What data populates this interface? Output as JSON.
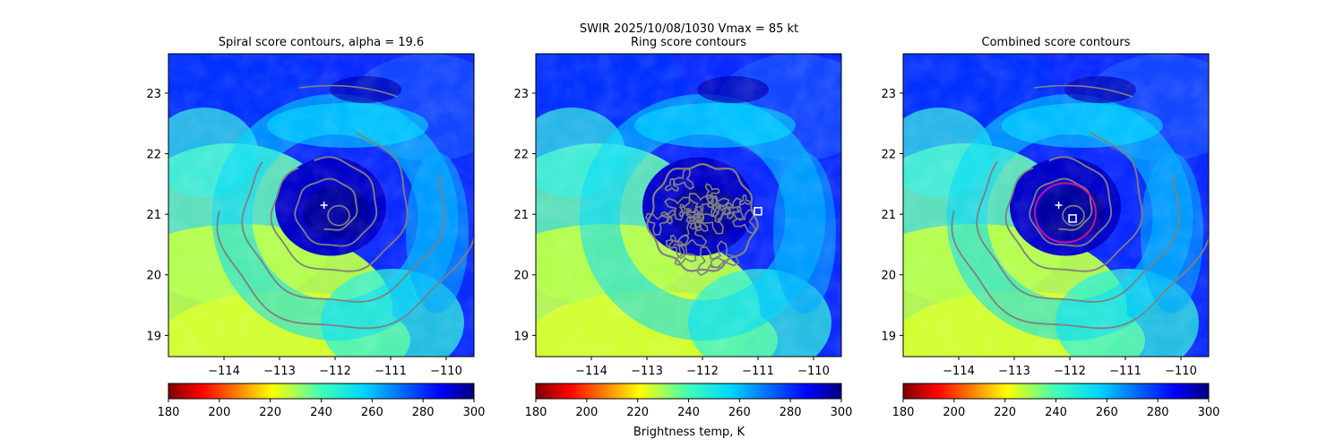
{
  "figure": {
    "suptitle_line1": "SWIR  2025/10/08/1030    Vmax = 85 kt",
    "colorbar_label": "Brightness temp, K"
  },
  "chart_data": [
    {
      "type": "heatmap",
      "title": "Spiral score contours, alpha = 19.6",
      "xlim": [
        -115.0,
        -109.5
      ],
      "ylim": [
        18.65,
        23.65
      ],
      "x_ticks": [
        -114,
        -113,
        -112,
        -111,
        -110
      ],
      "y_ticks": [
        19,
        20,
        21,
        22,
        23
      ],
      "x_tick_labels": [
        "−114",
        "−113",
        "−112",
        "−111",
        "−110"
      ],
      "y_tick_labels": [
        "19",
        "20",
        "21",
        "22",
        "23"
      ],
      "colorbar": {
        "min": 180,
        "max": 300,
        "ticks": [
          180,
          200,
          220,
          240,
          260,
          280,
          300
        ],
        "colormap": "jet_r"
      },
      "markers": [
        {
          "shape": "plus",
          "lon": -112.2,
          "lat": 21.15,
          "color": "#ffffff"
        }
      ],
      "contour_style": {
        "color": "#808080",
        "style": "spiral"
      }
    },
    {
      "type": "heatmap",
      "title": "Ring score contours",
      "xlim": [
        -115.0,
        -109.5
      ],
      "ylim": [
        18.65,
        23.65
      ],
      "x_ticks": [
        -114,
        -113,
        -112,
        -111,
        -110
      ],
      "y_ticks": [
        19,
        20,
        21,
        22,
        23
      ],
      "x_tick_labels": [
        "−114",
        "−113",
        "−112",
        "−111",
        "−110"
      ],
      "y_tick_labels": [
        "19",
        "20",
        "21",
        "22",
        "23"
      ],
      "colorbar": {
        "min": 180,
        "max": 300,
        "ticks": [
          180,
          200,
          220,
          240,
          260,
          280,
          300
        ],
        "colormap": "jet_r"
      },
      "markers": [
        {
          "shape": "square",
          "lon": -111.0,
          "lat": 21.05,
          "color": "#ffffff"
        }
      ],
      "contour_style": {
        "color": "#808080",
        "style": "ring",
        "center_lon": -112.0,
        "center_lat": 20.95,
        "radius_deg": 0.95
      }
    },
    {
      "type": "heatmap",
      "title": "Combined score contours",
      "xlim": [
        -115.0,
        -109.5
      ],
      "ylim": [
        18.65,
        23.65
      ],
      "x_ticks": [
        -114,
        -113,
        -112,
        -111,
        -110
      ],
      "y_ticks": [
        19,
        20,
        21,
        22,
        23
      ],
      "x_tick_labels": [
        "−114",
        "−113",
        "−112",
        "−111",
        "−110"
      ],
      "y_tick_labels": [
        "19",
        "20",
        "21",
        "22",
        "23"
      ],
      "colorbar": {
        "min": 180,
        "max": 300,
        "ticks": [
          180,
          200,
          220,
          240,
          260,
          280,
          300
        ],
        "colormap": "jet_r"
      },
      "markers": [
        {
          "shape": "plus",
          "lon": -112.2,
          "lat": 21.15,
          "color": "#ffffff"
        },
        {
          "shape": "square",
          "lon": -111.95,
          "lat": 20.93,
          "color": "#ffffff"
        }
      ],
      "contour_style": {
        "color": "#808080",
        "style": "spiral",
        "highlight_color": "#c8138f"
      }
    }
  ]
}
